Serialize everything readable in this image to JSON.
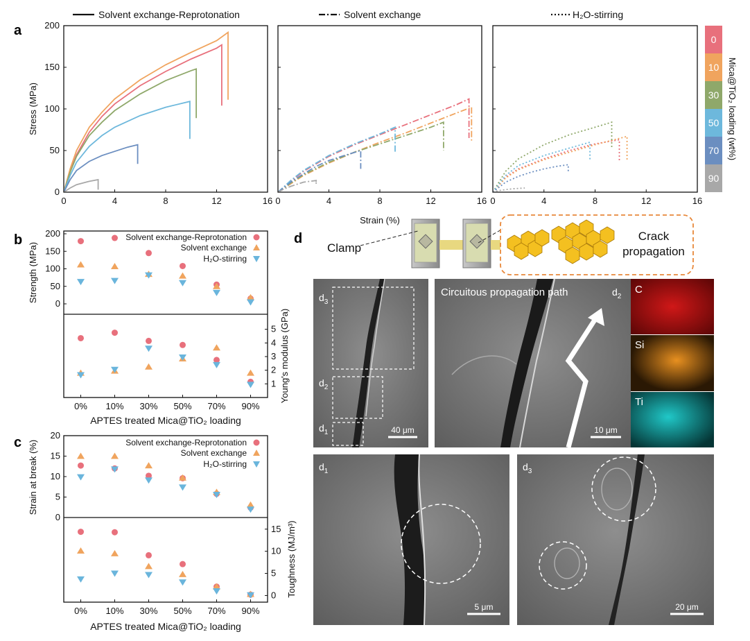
{
  "panel_labels": {
    "a": "a",
    "b": "b",
    "c": "c",
    "d": "d"
  },
  "panel_a": {
    "legend_solid": "Solvent exchange-Reprotonation",
    "legend_dashdot": "Solvent exchange",
    "legend_dotted": "H₂O-stirring",
    "ylabel": "Stress (MPa)",
    "xlabel": "Strain (%)",
    "yticks": [
      "0",
      "50",
      "100",
      "150",
      "200"
    ],
    "xticks": [
      "0",
      "4",
      "8",
      "12",
      "16"
    ],
    "colorbar_title": "Mica@TiO₂ loading (wt%)",
    "colorbar_labels": [
      "0",
      "10",
      "30",
      "50",
      "70",
      "90"
    ]
  },
  "panel_b": {
    "legend": [
      "Solvent exchange-Reprotonation",
      "Solvent exchange",
      "H₂O-stirring"
    ],
    "ylabel_top": "Strength (MPa)",
    "ylabel_bottom": "Young's modulus (GPa)",
    "xlabel": "APTES treated Mica@TiO₂ loading",
    "yticks_top": [
      "0",
      "50",
      "100",
      "150",
      "200"
    ],
    "yticks_bottom": [
      "1",
      "2",
      "3",
      "4",
      "5"
    ]
  },
  "panel_c": {
    "legend": [
      "Solvent exchange-Reprotonation",
      "Solvent exchange",
      "H₂O-stirring"
    ],
    "ylabel_top": "Strain at break (%)",
    "ylabel_bottom": "Toughness (MJ/m³)",
    "xlabel": "APTES treated Mica@TiO₂ loading",
    "yticks_top": [
      "0",
      "5",
      "10",
      "15",
      "20"
    ],
    "yticks_bottom": [
      "0",
      "5",
      "10",
      "15"
    ]
  },
  "panel_d": {
    "clamp_label": "Clamp",
    "crack_label_1": "Crack",
    "crack_label_2": "propagation",
    "sem_d_label": "d",
    "sem_d1_sub": "1",
    "sem_d2_sub": "2",
    "sem_d3_sub": "3",
    "path_label": "Circuitous propagation path",
    "eds_labels": [
      "C",
      "Si",
      "Ti"
    ],
    "scale_40": "40 μm",
    "scale_10": "10 μm",
    "scale_5": "5 μm",
    "scale_20": "20 μm"
  },
  "colors": {
    "c0": "#e8707c",
    "c10": "#f0a45e",
    "c30": "#8fa86a",
    "c50": "#6db8dc",
    "c70": "#6b8ec0",
    "c90": "#a8a8a8",
    "ser": "#e8707c",
    "se": "#f0a45e",
    "hs": "#6ab5dc"
  },
  "chart_data": [
    {
      "type": "line",
      "panel": "a-left",
      "style": "solid",
      "xlabel": "Strain (%)",
      "ylabel": "Stress (MPa)",
      "xlim": [
        0,
        16
      ],
      "ylim": [
        0,
        200
      ],
      "series": [
        {
          "name": "0",
          "x": [
            0,
            0.5,
            1,
            2,
            3,
            4,
            6,
            8,
            10,
            12,
            12.4,
            12.4
          ],
          "y": [
            0,
            25,
            45,
            72,
            91,
            106,
            128,
            145,
            160,
            173,
            177,
            104
          ]
        },
        {
          "name": "10",
          "x": [
            0,
            0.5,
            1,
            2,
            3,
            4,
            6,
            8,
            10,
            12,
            12.9,
            12.9
          ],
          "y": [
            0,
            28,
            50,
            78,
            96,
            112,
            135,
            153,
            168,
            182,
            192,
            111
          ]
        },
        {
          "name": "30",
          "x": [
            0,
            0.5,
            1,
            2,
            3,
            4,
            6,
            8,
            10,
            10.4,
            10.4
          ],
          "y": [
            0,
            24,
            43,
            68,
            84,
            98,
            118,
            134,
            146,
            148,
            89
          ]
        },
        {
          "name": "50",
          "x": [
            0,
            0.5,
            1,
            2,
            3,
            4,
            6,
            8,
            9.9,
            9.9
          ],
          "y": [
            0,
            20,
            36,
            55,
            68,
            78,
            92,
            102,
            109,
            64
          ]
        },
        {
          "name": "70",
          "x": [
            0,
            0.5,
            1,
            2,
            3,
            4,
            5,
            5.8,
            5.8
          ],
          "y": [
            0,
            15,
            26,
            37,
            44,
            49,
            54,
            57,
            34
          ]
        },
        {
          "name": "90",
          "x": [
            0,
            0.5,
            1,
            2,
            2.7,
            2.7
          ],
          "y": [
            0,
            5,
            9,
            13,
            15,
            3
          ]
        }
      ]
    },
    {
      "type": "line",
      "panel": "a-middle",
      "style": "dashdot",
      "xlabel": "Strain (%)",
      "xlim": [
        0,
        16
      ],
      "ylim": [
        0,
        200
      ],
      "series": [
        {
          "name": "0",
          "x": [
            0,
            1,
            2,
            4,
            6,
            8,
            10,
            12,
            14,
            15,
            15
          ],
          "y": [
            0,
            13,
            25,
            43,
            57,
            69,
            81,
            93,
            105,
            112,
            65
          ]
        },
        {
          "name": "10",
          "x": [
            0,
            1,
            2,
            4,
            6,
            8,
            10,
            12,
            14,
            15.2,
            15.2
          ],
          "y": [
            0,
            10,
            20,
            35,
            48,
            60,
            71,
            83,
            95,
            102,
            62
          ]
        },
        {
          "name": "30",
          "x": [
            0,
            1,
            2,
            4,
            6,
            8,
            10,
            12,
            13,
            13
          ],
          "y": [
            0,
            11,
            21,
            36,
            48,
            58,
            68,
            78,
            84,
            50
          ]
        },
        {
          "name": "50",
          "x": [
            0,
            1,
            2,
            4,
            6,
            8,
            9.2,
            9.2
          ],
          "y": [
            0,
            14,
            26,
            44,
            58,
            70,
            78,
            47
          ]
        },
        {
          "name": "70",
          "x": [
            0,
            1,
            2,
            3,
            4,
            5,
            6.5,
            6.5
          ],
          "y": [
            0,
            12,
            22,
            31,
            38,
            43,
            50,
            28
          ]
        },
        {
          "name": "90",
          "x": [
            0,
            0.5,
            1,
            2,
            3,
            3,
            3
          ],
          "y": [
            0,
            4,
            7,
            12,
            14,
            10,
            14
          ]
        }
      ]
    },
    {
      "type": "line",
      "panel": "a-right",
      "style": "dotted",
      "xlabel": "Strain (%)",
      "xlim": [
        0,
        16
      ],
      "ylim": [
        0,
        200
      ],
      "series": [
        {
          "name": "0",
          "x": [
            0,
            1,
            2,
            4,
            6,
            8,
            9.9,
            9.9
          ],
          "y": [
            0,
            18,
            28,
            40,
            50,
            58,
            63,
            36
          ]
        },
        {
          "name": "10",
          "x": [
            0,
            1,
            2,
            4,
            6,
            8,
            10.5,
            10.5
          ],
          "y": [
            0,
            17,
            27,
            39,
            48,
            57,
            67,
            39
          ]
        },
        {
          "name": "30",
          "x": [
            0,
            1,
            2,
            4,
            6,
            8,
            9.3,
            9.3
          ],
          "y": [
            0,
            25,
            40,
            57,
            69,
            78,
            84,
            52
          ]
        },
        {
          "name": "50",
          "x": [
            0,
            1,
            2,
            4,
            6,
            7.6,
            7.6
          ],
          "y": [
            0,
            20,
            32,
            44,
            53,
            60,
            37
          ]
        },
        {
          "name": "70",
          "x": [
            0,
            1,
            2,
            3,
            4,
            5,
            5.9,
            5.9
          ],
          "y": [
            0,
            12,
            19,
            24,
            28,
            31,
            33,
            24
          ]
        },
        {
          "name": "90",
          "x": [
            0,
            0.5,
            1,
            1.5,
            2,
            2.5
          ],
          "y": [
            0,
            2,
            3,
            4,
            4.5,
            5
          ]
        }
      ]
    },
    {
      "type": "scatter",
      "panel": "b",
      "categories": [
        "0%",
        "10%",
        "30%",
        "50%",
        "70%",
        "90%"
      ],
      "xlabel": "APTES treated Mica@TiO₂ loading",
      "series": [
        {
          "name": "Solvent exchange-Reprotonation",
          "metric": "Strength (MPa)",
          "values": [
            179,
            188,
            145,
            108,
            55,
            15
          ]
        },
        {
          "name": "Solvent exchange",
          "metric": "Strength (MPa)",
          "values": [
            112,
            107,
            85,
            80,
            50,
            18
          ]
        },
        {
          "name": "H₂O-stirring",
          "metric": "Strength (MPa)",
          "values": [
            63,
            66,
            82,
            60,
            32,
            5
          ]
        },
        {
          "name": "Solvent exchange-Reprotonation",
          "metric": "Young's modulus (GPa)",
          "values": [
            4.35,
            4.75,
            4.15,
            3.85,
            2.75,
            1.15
          ]
        },
        {
          "name": "Solvent exchange",
          "metric": "Young's modulus (GPa)",
          "values": [
            1.8,
            1.95,
            2.25,
            2.85,
            3.65,
            1.8
          ]
        },
        {
          "name": "H₂O-stirring",
          "metric": "Young's modulus (GPa)",
          "values": [
            1.65,
            2.05,
            3.6,
            2.95,
            2.4,
            0.95
          ]
        }
      ],
      "ylim_top": [
        0,
        200
      ],
      "ylim_bottom": [
        1,
        5
      ]
    },
    {
      "type": "scatter",
      "panel": "c",
      "categories": [
        "0%",
        "10%",
        "30%",
        "50%",
        "70%",
        "90%"
      ],
      "xlabel": "APTES treated Mica@TiO₂ loading",
      "series": [
        {
          "name": "Solvent exchange-Reprotonation",
          "metric": "Strain at break (%)",
          "values": [
            12.7,
            12.0,
            10.2,
            9.6,
            5.8,
            2.4
          ]
        },
        {
          "name": "Solvent exchange",
          "metric": "Strain at break (%)",
          "values": [
            15.0,
            15.0,
            12.7,
            9.7,
            6.2,
            3.1
          ]
        },
        {
          "name": "H₂O-stirring",
          "metric": "Strain at break (%)",
          "values": [
            9.9,
            11.8,
            9.1,
            7.4,
            5.6,
            2.0
          ]
        },
        {
          "name": "Solvent exchange-Reprotonation",
          "metric": "Toughness (MJ/m³)",
          "values": [
            14.4,
            14.3,
            9.1,
            7.1,
            2.0,
            0.2
          ]
        },
        {
          "name": "Solvent exchange",
          "metric": "Toughness (MJ/m³)",
          "values": [
            10.1,
            9.5,
            6.6,
            4.8,
            2.0,
            0.3
          ]
        },
        {
          "name": "H₂O-stirring",
          "metric": "Toughness (MJ/m³)",
          "values": [
            3.7,
            5.0,
            4.7,
            3.0,
            1.0,
            0.1
          ]
        }
      ],
      "ylim_top": [
        0,
        20
      ],
      "ylim_bottom": [
        -1,
        17
      ]
    }
  ]
}
